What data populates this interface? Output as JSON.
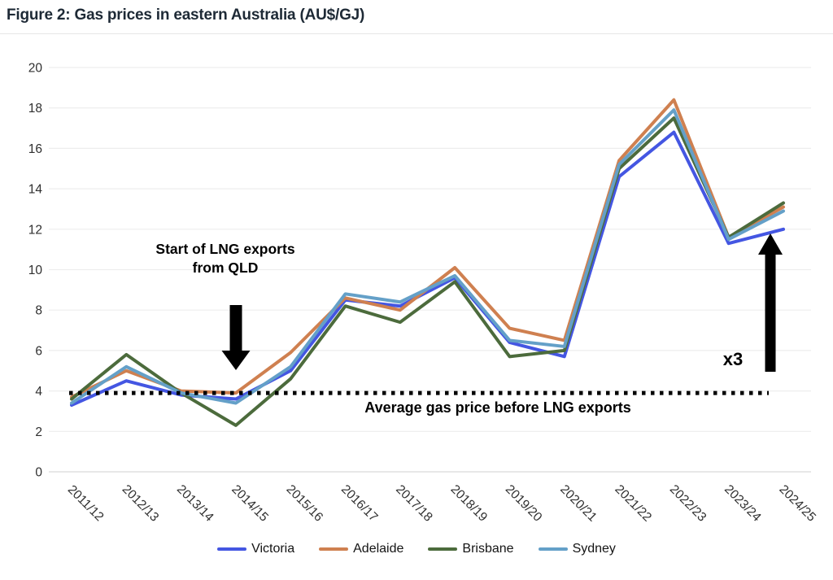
{
  "title": "Figure 2: Gas prices in eastern Australia (AU$/GJ)",
  "chart_data": {
    "type": "line",
    "title": "Figure 2: Gas prices in eastern Australia (AU$/GJ)",
    "xlabel": "",
    "ylabel": "",
    "ylim": [
      0,
      20
    ],
    "yticks": [
      0,
      2,
      4,
      6,
      8,
      10,
      12,
      14,
      16,
      18,
      20
    ],
    "grid": true,
    "legend_position": "bottom",
    "categories": [
      "2011/12",
      "2012/13",
      "2013/14",
      "2014/15",
      "2015/16",
      "2016/17",
      "2017/18",
      "2018/19",
      "2019/20",
      "2020/21",
      "2021/22",
      "2022/23",
      "2023/24",
      "2024/25"
    ],
    "series": [
      {
        "name": "Victoria",
        "color": "#4456e2",
        "values": [
          3.3,
          4.5,
          3.8,
          3.6,
          5.0,
          8.5,
          8.2,
          9.6,
          6.4,
          5.7,
          14.6,
          16.8,
          11.3,
          12.0
        ]
      },
      {
        "name": "Adelaide",
        "color": "#cf8050",
        "values": [
          3.7,
          5.0,
          4.0,
          3.9,
          5.9,
          8.6,
          8.0,
          10.1,
          7.1,
          6.5,
          15.4,
          18.4,
          11.6,
          13.1
        ]
      },
      {
        "name": "Brisbane",
        "color": "#4c6b3c",
        "values": [
          3.6,
          5.8,
          3.9,
          2.3,
          4.6,
          8.2,
          7.4,
          9.4,
          5.7,
          6.0,
          15.0,
          17.5,
          11.6,
          13.3
        ]
      },
      {
        "name": "Sydney",
        "color": "#64a0c8",
        "values": [
          3.4,
          5.2,
          3.9,
          3.4,
          5.2,
          8.8,
          8.4,
          9.7,
          6.5,
          6.2,
          15.2,
          17.9,
          11.5,
          12.9
        ]
      }
    ],
    "reference_line": {
      "value": 3.9,
      "style": "dotted",
      "color": "#000000",
      "label": "Average gas price before LNG exports"
    },
    "annotations": {
      "lng_start": {
        "lines": [
          "Start of LNG exports",
          "from QLD"
        ],
        "arrow": "down",
        "target_category": "2014/15"
      },
      "multiplier": {
        "text": "x3",
        "arrow": "up",
        "near_category": "2024/25"
      }
    }
  }
}
